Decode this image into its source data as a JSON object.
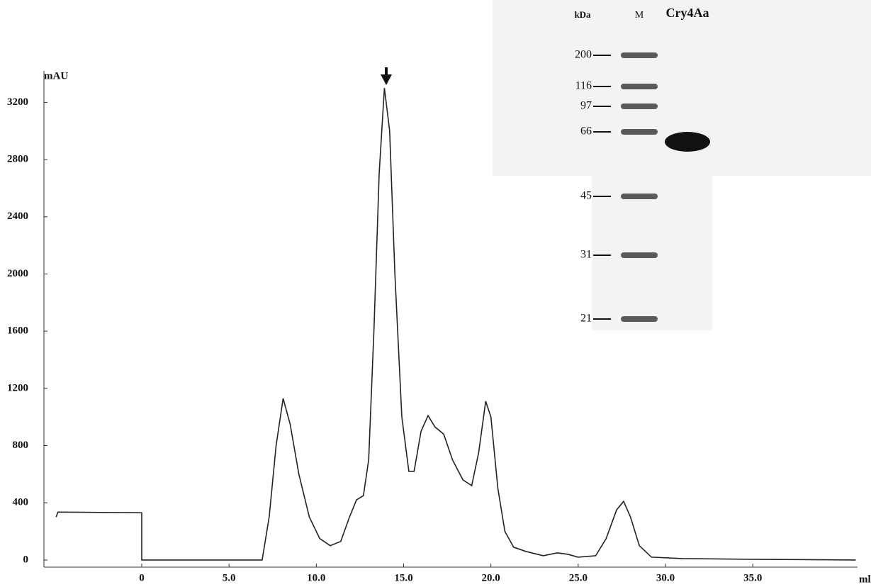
{
  "chart_data": {
    "type": "line",
    "y_label": "mAU",
    "x_label": "ml",
    "xlim": [
      -5.6,
      41
    ],
    "ylim": [
      -50,
      3420
    ],
    "xticks": [
      0,
      {
        "value": 5,
        "label": "5.0"
      },
      {
        "value": 10,
        "label": "10.0"
      },
      {
        "value": 15,
        "label": "15.0"
      },
      {
        "value": 20,
        "label": "20.0"
      },
      {
        "value": 25,
        "label": "25.0"
      },
      {
        "value": 30,
        "label": "30.0"
      },
      {
        "value": 35,
        "label": "35.0"
      }
    ],
    "yticks": [
      0,
      400,
      800,
      1200,
      1600,
      2000,
      2400,
      2800,
      3200
    ],
    "series": [
      {
        "color": "#222222",
        "x": [
          -4.9,
          -4.8,
          0,
          0,
          6.9,
          7.3,
          7.7,
          8.1,
          8.5,
          9.0,
          9.6,
          10.2,
          10.8,
          11.4,
          11.9,
          12.3,
          12.7,
          13.0,
          13.3,
          13.6,
          13.9,
          14.2,
          14.5,
          14.9,
          15.3,
          15.6,
          16.0,
          16.4,
          16.8,
          17.3,
          17.8,
          18.4,
          18.9,
          19.3,
          19.7,
          20.0,
          20.4,
          20.8,
          21.3,
          22.0,
          23.0,
          23.8,
          24.4,
          25.0,
          26.0,
          26.6,
          27.2,
          27.6,
          28.0,
          28.5,
          29.2,
          31,
          35,
          40.9
        ],
        "values": [
          300,
          335,
          330,
          0,
          0,
          300,
          800,
          1130,
          950,
          600,
          300,
          150,
          100,
          130,
          300,
          420,
          450,
          700,
          1600,
          2700,
          3300,
          3000,
          2000,
          1000,
          620,
          620,
          900,
          1010,
          930,
          880,
          700,
          560,
          520,
          750,
          1110,
          1000,
          500,
          200,
          90,
          60,
          30,
          50,
          40,
          20,
          30,
          150,
          350,
          410,
          300,
          100,
          20,
          10,
          5,
          0
        ]
      }
    ]
  },
  "inset": {
    "unit": "kDa",
    "lanes": [
      "M",
      "Cry4Aa"
    ],
    "markers": [
      200,
      116,
      97,
      66,
      45,
      31,
      21
    ]
  }
}
